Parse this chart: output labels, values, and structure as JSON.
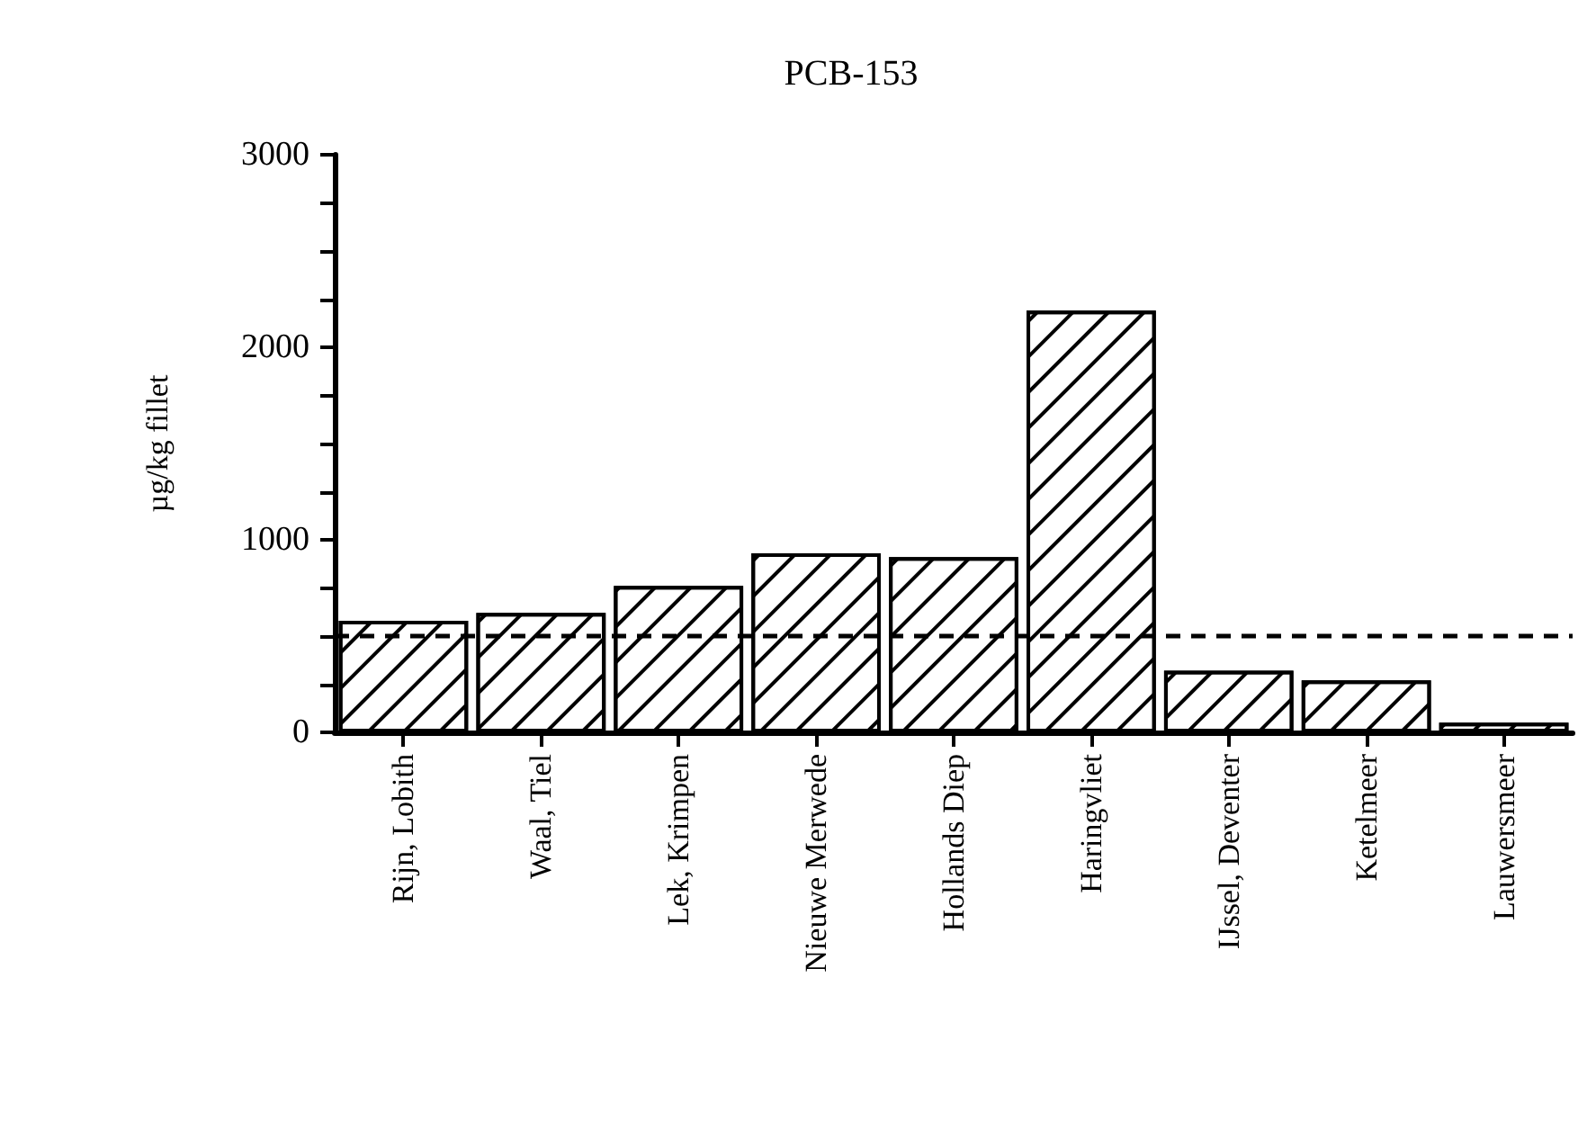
{
  "chart_data": {
    "type": "bar",
    "title": "PCB-153",
    "ylabel": "µg/kg fillet",
    "categories": [
      "Rijn, Lobith",
      "Waal, Tiel",
      "Lek, Krimpen",
      "Nieuwe Merwede",
      "Hollands Diep",
      "Haringvliet",
      "IJssel, Deventer",
      "Ketelmeer",
      "Lauwersmeer"
    ],
    "values": [
      580,
      620,
      760,
      930,
      910,
      2190,
      320,
      270,
      50
    ],
    "color": "#000000",
    "ylim": [
      0,
      3000
    ],
    "yticks": [
      0,
      {
        "value": 250,
        "label": null
      },
      {
        "value": 500,
        "label": null
      },
      {
        "value": 750,
        "label": null
      },
      1000,
      {
        "value": 1250,
        "label": null
      },
      {
        "value": 1500,
        "label": null
      },
      {
        "value": 1750,
        "label": null
      },
      2000,
      {
        "value": 2250,
        "label": null
      },
      {
        "value": 2500,
        "label": null
      },
      {
        "value": 2750,
        "label": null
      },
      3000
    ],
    "ref_lines": [
      {
        "axis": "y",
        "value": 500,
        "line_style": "dashed",
        "color": "#000000"
      }
    ],
    "grid": false
  }
}
